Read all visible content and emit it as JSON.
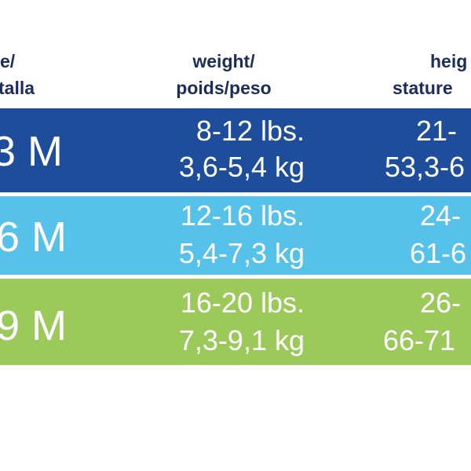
{
  "table": {
    "header": [
      [
        "e/",
        "talla"
      ],
      [
        "weight/",
        "poids/peso"
      ],
      [
        "heig",
        "stature"
      ]
    ],
    "rows": [
      {
        "size": "3 M",
        "weight": [
          "8-12 lbs.",
          "3,6-5,4 kg"
        ],
        "height": [
          "21-",
          "53,3-6"
        ]
      },
      {
        "size": "6 M",
        "weight": [
          "12-16 lbs.",
          "5,4-7,3 kg"
        ],
        "height": [
          "24-",
          "61-6"
        ]
      },
      {
        "size": "9 M",
        "weight": [
          "16-20 lbs.",
          "7,3-9,1 kg"
        ],
        "height": [
          "26-",
          "66-71"
        ]
      }
    ]
  }
}
